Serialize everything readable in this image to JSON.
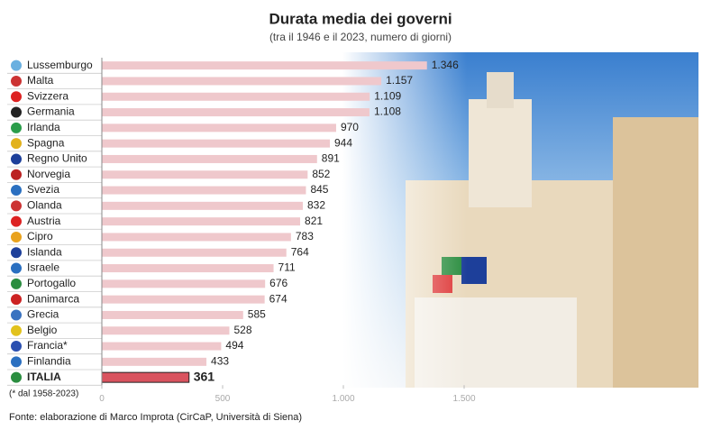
{
  "chart_data": {
    "type": "bar",
    "orientation": "horizontal",
    "title": "Durata media dei governi",
    "subtitle": "(tra il 1946 e il 2023, numero di giorni)",
    "categories": [
      "Lussemburgo",
      "Malta",
      "Svizzera",
      "Germania",
      "Irlanda",
      "Spagna",
      "Regno Unito",
      "Norvegia",
      "Svezia",
      "Olanda",
      "Austria",
      "Cipro",
      "Islanda",
      "Israele",
      "Portogallo",
      "Danimarca",
      "Grecia",
      "Belgio",
      "Francia*",
      "Finlandia",
      "ITALIA"
    ],
    "values": [
      1346,
      1157,
      1109,
      1108,
      970,
      944,
      891,
      852,
      845,
      832,
      821,
      783,
      764,
      711,
      676,
      674,
      585,
      528,
      494,
      433,
      361
    ],
    "value_labels": [
      "1.346",
      "1.157",
      "1.109",
      "1.108",
      "970",
      "944",
      "891",
      "852",
      "845",
      "832",
      "821",
      "783",
      "764",
      "711",
      "676",
      "674",
      "585",
      "528",
      "494",
      "433",
      "361"
    ],
    "colors": [
      "#efc8cc",
      "#efc8cc",
      "#efc8cc",
      "#efc8cc",
      "#efc8cc",
      "#efc8cc",
      "#efc8cc",
      "#efc8cc",
      "#efc8cc",
      "#efc8cc",
      "#efc8cc",
      "#efc8cc",
      "#efc8cc",
      "#efc8cc",
      "#efc8cc",
      "#efc8cc",
      "#efc8cc",
      "#efc8cc",
      "#efc8cc",
      "#efc8cc",
      "#d9535f"
    ],
    "xlim": [
      0,
      1500
    ],
    "xticks": [
      0,
      500,
      {
        "value": 1000,
        "label": "1.000"
      },
      {
        "value": 1500,
        "label": "1.500"
      }
    ],
    "note": "(* dal 1958-2023)",
    "source": "Fonte: elaborazione di Marco Improta (CirCaP, Università di Siena)"
  }
}
